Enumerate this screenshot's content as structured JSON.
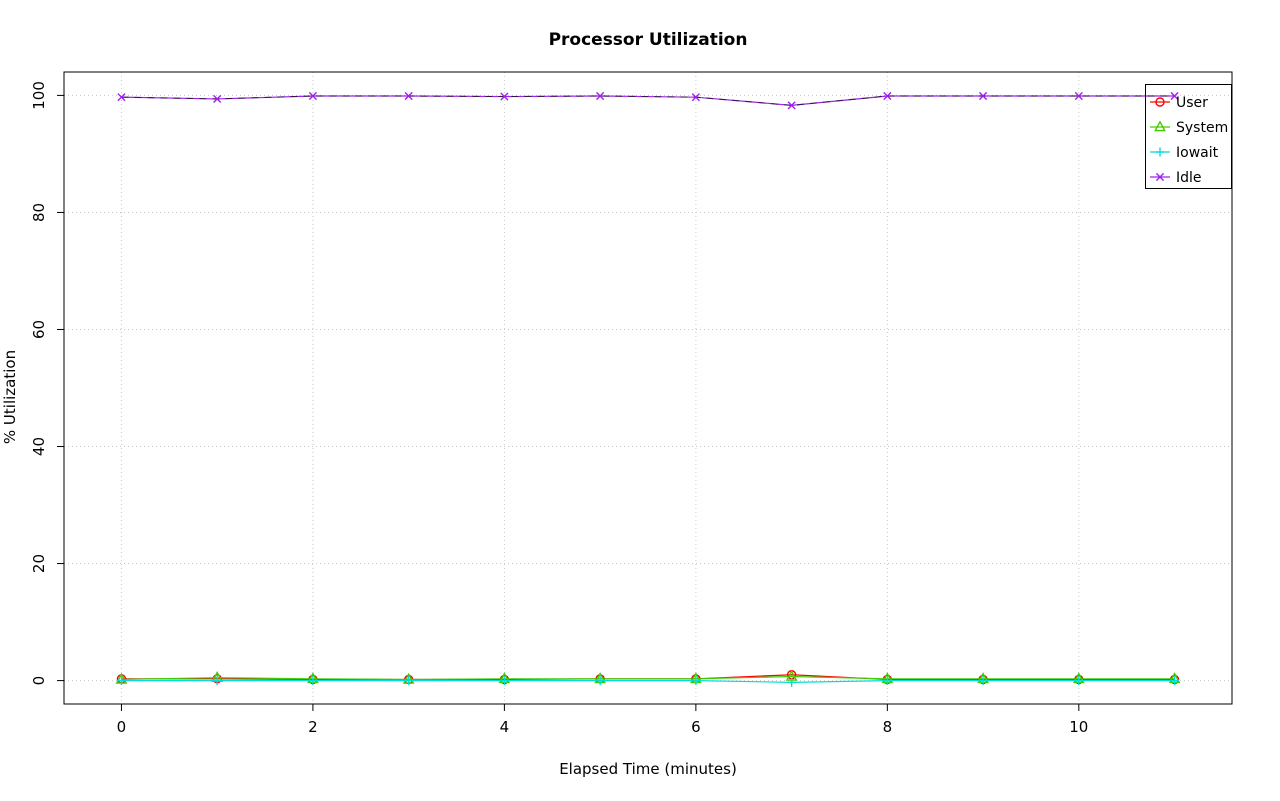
{
  "chart_data": {
    "type": "line",
    "title": "Processor Utilization",
    "xlabel": "Elapsed Time (minutes)",
    "ylabel": "% Utilization",
    "x": [
      0,
      1,
      2,
      3,
      4,
      5,
      6,
      7,
      8,
      9,
      10,
      11
    ],
    "xticks": [
      0,
      2,
      4,
      6,
      8,
      10
    ],
    "yticks": [
      0,
      20,
      40,
      60,
      80,
      100
    ],
    "xlim": [
      -0.6,
      11.6
    ],
    "ylim": [
      -4,
      104
    ],
    "grid": true,
    "grid_style": "dotted",
    "legend_position": "top-right",
    "legend_labels": [
      "User",
      "System",
      "Iowait",
      "Idle"
    ],
    "series": [
      {
        "name": "User",
        "color": "#ff0000",
        "marker": "circle",
        "dash_overlay": false,
        "values": [
          0.3,
          0.3,
          0.2,
          0.2,
          0.2,
          0.3,
          0.3,
          1.0,
          0.2,
          0.2,
          0.2,
          0.2
        ]
      },
      {
        "name": "System",
        "color": "#44cc00",
        "marker": "triangle",
        "dash_overlay": false,
        "values": [
          0.2,
          0.5,
          0.3,
          0.2,
          0.3,
          0.3,
          0.3,
          0.7,
          0.3,
          0.3,
          0.3,
          0.3
        ]
      },
      {
        "name": "Iowait",
        "color": "#00dddd",
        "marker": "plus",
        "dash_overlay": false,
        "values": [
          0.0,
          0.0,
          0.0,
          0.0,
          0.0,
          0.0,
          0.0,
          -0.3,
          0.0,
          0.0,
          0.0,
          0.0
        ]
      },
      {
        "name": "Idle",
        "color": "#a020f0",
        "marker": "x",
        "dash_overlay": true,
        "values": [
          99.7,
          99.4,
          99.9,
          99.9,
          99.8,
          99.9,
          99.7,
          98.3,
          99.9,
          99.9,
          99.9,
          99.9
        ]
      }
    ]
  }
}
